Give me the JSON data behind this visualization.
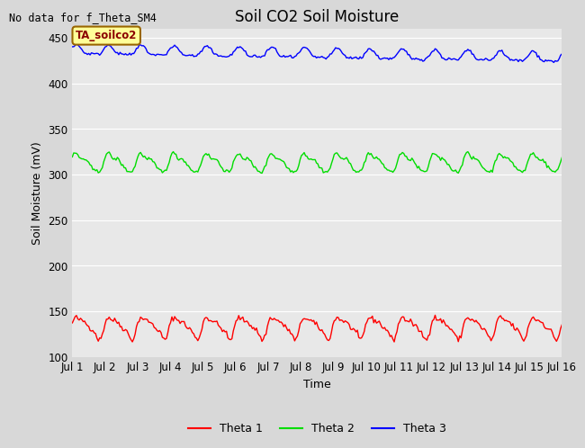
{
  "title": "Soil CO2 Soil Moisture",
  "no_data_text": "No data for f_Theta_SM4",
  "annotation_text": "TA_soilco2",
  "xlabel": "Time",
  "ylabel": "Soil Moisture (mV)",
  "ylim": [
    100,
    460
  ],
  "yticks": [
    100,
    150,
    200,
    250,
    300,
    350,
    400,
    450
  ],
  "x_start_day": 1,
  "x_end_day": 16,
  "x_tick_days": [
    1,
    2,
    3,
    4,
    5,
    6,
    7,
    8,
    9,
    10,
    11,
    12,
    13,
    14,
    15,
    16
  ],
  "x_tick_labels": [
    "Jul 1",
    "Jul 2",
    "Jul 3",
    "Jul 4",
    "Jul 5",
    "Jul 6",
    "Jul 7",
    "Jul 8",
    "Jul 9",
    "Jul 10",
    "Jul 11",
    "Jul 12",
    "Jul 13",
    "Jul 14",
    "Jul 15",
    "Jul 16"
  ],
  "theta1_base": 133,
  "theta1_amplitude": 10,
  "theta1_color": "#ff0000",
  "theta2_base": 313,
  "theta2_amplitude": 9,
  "theta2_color": "#00dd00",
  "theta3_base": 436,
  "theta3_amplitude": 5,
  "theta3_color": "#0000ff",
  "theta3_trend": -0.55,
  "bg_color": "#d8d8d8",
  "plot_bg_color": "#e8e8e8",
  "legend_labels": [
    "Theta 1",
    "Theta 2",
    "Theta 3"
  ],
  "title_fontsize": 12,
  "label_fontsize": 9,
  "tick_fontsize": 8.5,
  "annotation_bg": "#ffff99",
  "annotation_border": "#996600"
}
